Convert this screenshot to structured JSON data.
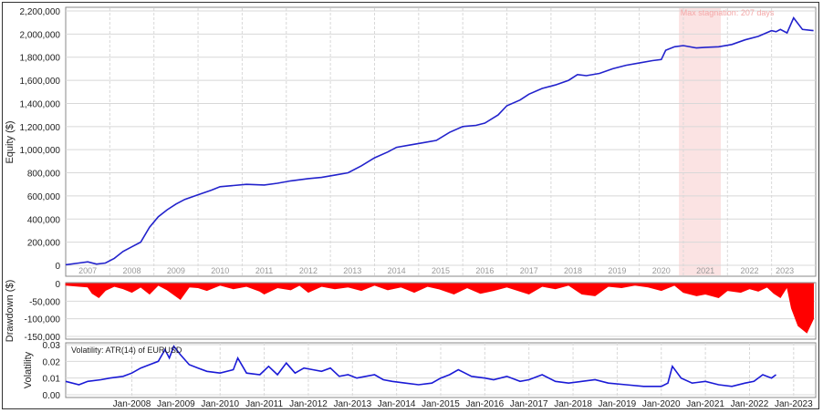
{
  "colors": {
    "equity_line": "#2222cc",
    "drawdown_fill": "#ff0000",
    "volatility_line": "#1a1ad6",
    "grid": "#d8d8d8",
    "stagnation_band": "#fbe3e3",
    "stagnation_text": "#f4a7a7",
    "year_label": "#999999"
  },
  "chart_data": [
    {
      "type": "line",
      "panel": "equity",
      "ylabel": "Equity ($)",
      "ylim": [
        0,
        2200000
      ],
      "y_ticks": [
        "0",
        "200,000",
        "400,000",
        "600,000",
        "800,000",
        "1,000,000",
        "1,200,000",
        "1,400,000",
        "1,600,000",
        "1,800,000",
        "2,000,000",
        "2,200,000"
      ],
      "y_tick_values": [
        0,
        200000,
        400000,
        600000,
        800000,
        1000000,
        1200000,
        1400000,
        1600000,
        1800000,
        2000000,
        2200000
      ],
      "x_range": [
        2006.5,
        2023.5
      ],
      "year_labels": [
        "2007",
        "2008",
        "2009",
        "2010",
        "2011",
        "2012",
        "2013",
        "2014",
        "2015",
        "2016",
        "2017",
        "2018",
        "2019",
        "2020",
        "2021",
        "2022",
        "2023"
      ],
      "year_positions": [
        2007.0,
        2008.0,
        2009.0,
        2010.0,
        2011.0,
        2012.0,
        2013.0,
        2014.0,
        2015.0,
        2016.0,
        2017.0,
        2018.0,
        2019.0,
        2020.0,
        2021.0,
        2022.0,
        2022.8
      ],
      "annotation": {
        "text": "Max stagnation: 207 days",
        "x_start": 2020.4,
        "x_end": 2021.35
      },
      "series": [
        {
          "x": [
            2006.5,
            2006.8,
            2007.0,
            2007.2,
            2007.4,
            2007.6,
            2007.8,
            2008.0,
            2008.2,
            2008.4,
            2008.6,
            2008.8,
            2009.0,
            2009.2,
            2009.5,
            2009.8,
            2010.0,
            2010.3,
            2010.6,
            2011.0,
            2011.3,
            2011.6,
            2012.0,
            2012.3,
            2012.6,
            2012.9,
            2013.2,
            2013.5,
            2013.8,
            2014.0,
            2014.3,
            2014.6,
            2014.9,
            2015.2,
            2015.5,
            2015.8,
            2016.0,
            2016.3,
            2016.5,
            2016.8,
            2017.0,
            2017.3,
            2017.6,
            2017.9,
            2018.1,
            2018.3,
            2018.6,
            2018.9,
            2019.2,
            2019.5,
            2019.8,
            2020.0,
            2020.1,
            2020.3,
            2020.5,
            2020.8,
            2021.0,
            2021.3,
            2021.6,
            2021.9,
            2022.2,
            2022.5,
            2022.6,
            2022.7,
            2022.85,
            2023.0,
            2023.2,
            2023.45
          ],
          "y": [
            5000,
            20000,
            30000,
            10000,
            20000,
            60000,
            120000,
            160000,
            200000,
            330000,
            420000,
            480000,
            530000,
            570000,
            610000,
            650000,
            680000,
            690000,
            700000,
            695000,
            710000,
            730000,
            750000,
            760000,
            780000,
            800000,
            860000,
            930000,
            980000,
            1020000,
            1040000,
            1060000,
            1080000,
            1150000,
            1200000,
            1210000,
            1230000,
            1300000,
            1380000,
            1430000,
            1480000,
            1530000,
            1560000,
            1600000,
            1650000,
            1640000,
            1660000,
            1700000,
            1730000,
            1750000,
            1770000,
            1780000,
            1860000,
            1890000,
            1900000,
            1880000,
            1885000,
            1890000,
            1910000,
            1950000,
            1980000,
            2030000,
            2020000,
            2040000,
            2010000,
            2140000,
            2040000,
            2030000
          ]
        }
      ]
    },
    {
      "type": "area",
      "panel": "drawdown",
      "ylabel": "Drawdown ($)",
      "ylim": [
        -150000,
        0
      ],
      "y_ticks": [
        "0",
        "-50,000",
        "-100,000",
        "-150,000"
      ],
      "y_tick_values": [
        0,
        -50000,
        -100000,
        -150000
      ],
      "x_range": [
        2006.5,
        2023.5
      ],
      "series": [
        {
          "x": [
            2006.5,
            2007.0,
            2007.1,
            2007.25,
            2007.4,
            2007.6,
            2007.8,
            2008.0,
            2008.2,
            2008.4,
            2008.6,
            2008.8,
            2009.1,
            2009.3,
            2009.5,
            2009.7,
            2010.0,
            2010.3,
            2010.6,
            2010.9,
            2011.0,
            2011.3,
            2011.6,
            2011.8,
            2012.0,
            2012.3,
            2012.6,
            2012.9,
            2013.2,
            2013.5,
            2013.8,
            2014.1,
            2014.4,
            2014.7,
            2014.95,
            2015.3,
            2015.6,
            2015.9,
            2016.2,
            2016.5,
            2016.8,
            2017.0,
            2017.3,
            2017.6,
            2017.9,
            2018.2,
            2018.5,
            2018.8,
            2019.1,
            2019.4,
            2019.7,
            2020.0,
            2020.3,
            2020.5,
            2020.8,
            2021.0,
            2021.3,
            2021.5,
            2021.8,
            2022.0,
            2022.2,
            2022.4,
            2022.55,
            2022.7,
            2022.85,
            2022.95,
            2023.1,
            2023.3,
            2023.45
          ],
          "y": [
            -5000,
            -10000,
            -28000,
            -40000,
            -20000,
            -8000,
            -15000,
            -25000,
            -10000,
            -30000,
            -5000,
            -18000,
            -45000,
            -10000,
            -12000,
            -20000,
            -5000,
            -15000,
            -8000,
            -22000,
            -30000,
            -12000,
            -18000,
            -5000,
            -25000,
            -8000,
            -15000,
            -10000,
            -20000,
            -5000,
            -18000,
            -10000,
            -25000,
            -8000,
            -15000,
            -30000,
            -12000,
            -28000,
            -20000,
            -10000,
            -22000,
            -30000,
            -8000,
            -15000,
            -5000,
            -30000,
            -35000,
            -8000,
            -12000,
            -5000,
            -10000,
            -20000,
            -5000,
            -25000,
            -35000,
            -30000,
            -40000,
            -20000,
            -25000,
            -15000,
            -22000,
            -10000,
            -28000,
            -40000,
            -10000,
            -70000,
            -120000,
            -140000,
            -100000
          ]
        }
      ]
    },
    {
      "type": "line",
      "panel": "volatility",
      "title": "Volatility: ATR(14) of EURUSD",
      "ylabel": "Volatility",
      "ylim": [
        0,
        0.03
      ],
      "y_ticks": [
        "0.00",
        "0.01",
        "0.02",
        "0.03"
      ],
      "y_tick_values": [
        0,
        0.01,
        0.02,
        0.03
      ],
      "x_range": [
        2006.5,
        2023.5
      ],
      "x_tick_labels": [
        "Jan-2008",
        "Jan-2009",
        "Jan-2010",
        "Jan-2011",
        "Jan-2012",
        "Jan-2013",
        "Jan-2014",
        "Jan-2015",
        "Jan-2016",
        "Jan-2017",
        "Jan-2018",
        "Jan-2019",
        "Jan-2020",
        "Jan-2021",
        "Jan-2022",
        "Jan-2023"
      ],
      "x_tick_values": [
        2008,
        2009,
        2010,
        2011,
        2012,
        2013,
        2014,
        2015,
        2016,
        2017,
        2018,
        2019,
        2020,
        2021,
        2022,
        2023
      ],
      "series": [
        {
          "x": [
            2006.5,
            2006.8,
            2007.0,
            2007.3,
            2007.5,
            2007.8,
            2008.0,
            2008.2,
            2008.4,
            2008.6,
            2008.75,
            2008.85,
            2008.95,
            2009.1,
            2009.3,
            2009.5,
            2009.7,
            2010.0,
            2010.3,
            2010.4,
            2010.6,
            2010.9,
            2011.1,
            2011.3,
            2011.5,
            2011.7,
            2011.9,
            2012.1,
            2012.3,
            2012.5,
            2012.7,
            2012.9,
            2013.1,
            2013.3,
            2013.5,
            2013.7,
            2013.9,
            2014.2,
            2014.5,
            2014.8,
            2015.0,
            2015.2,
            2015.4,
            2015.7,
            2016.0,
            2016.2,
            2016.5,
            2016.8,
            2017.0,
            2017.3,
            2017.6,
            2017.9,
            2018.2,
            2018.5,
            2018.8,
            2019.2,
            2019.6,
            2020.0,
            2020.15,
            2020.25,
            2020.45,
            2020.7,
            2021.0,
            2021.3,
            2021.6,
            2021.9,
            2022.1,
            2022.3,
            2022.5,
            2022.6
          ],
          "y": [
            0.008,
            0.006,
            0.008,
            0.009,
            0.01,
            0.011,
            0.013,
            0.016,
            0.018,
            0.02,
            0.027,
            0.022,
            0.029,
            0.024,
            0.018,
            0.016,
            0.014,
            0.013,
            0.015,
            0.022,
            0.013,
            0.012,
            0.017,
            0.012,
            0.019,
            0.013,
            0.016,
            0.015,
            0.014,
            0.016,
            0.011,
            0.012,
            0.01,
            0.011,
            0.012,
            0.009,
            0.008,
            0.007,
            0.006,
            0.007,
            0.01,
            0.012,
            0.015,
            0.011,
            0.01,
            0.009,
            0.011,
            0.008,
            0.009,
            0.012,
            0.008,
            0.007,
            0.008,
            0.009,
            0.007,
            0.006,
            0.005,
            0.005,
            0.007,
            0.017,
            0.01,
            0.007,
            0.008,
            0.006,
            0.005,
            0.007,
            0.008,
            0.012,
            0.01,
            0.012
          ]
        }
      ]
    }
  ]
}
